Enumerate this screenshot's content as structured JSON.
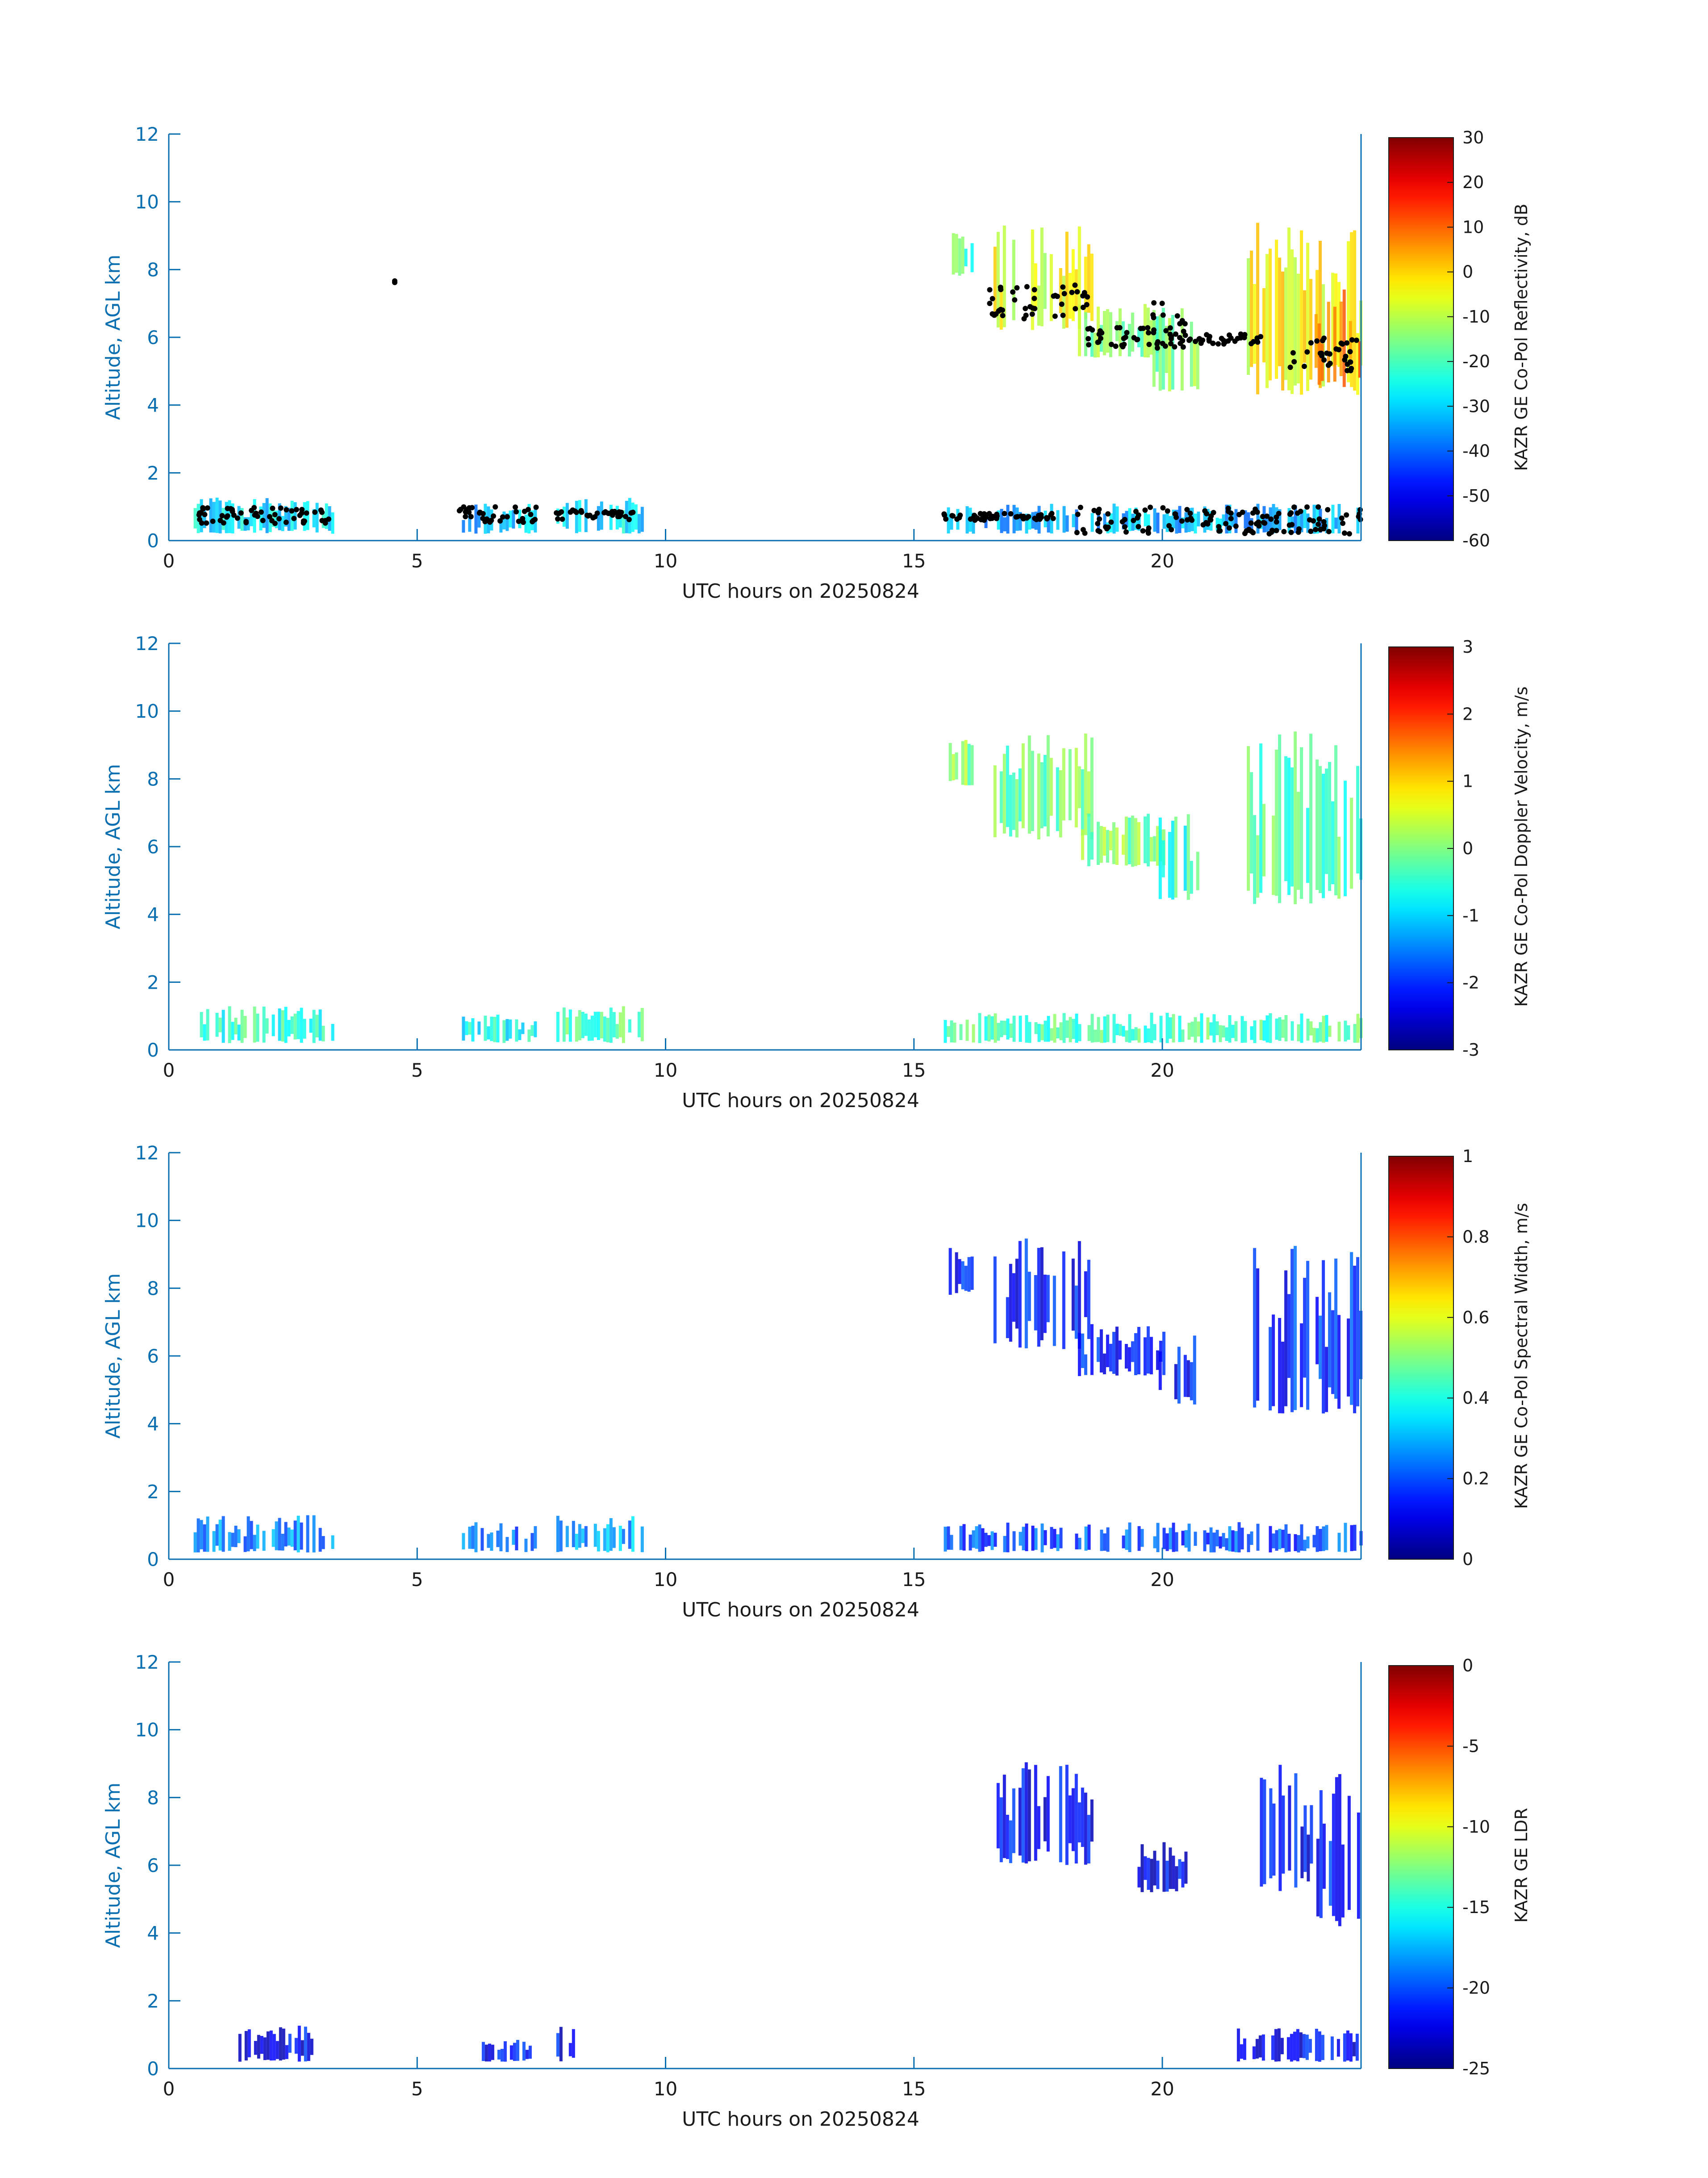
{
  "colors": {
    "axis": "#0a6fb0",
    "text": "#1a1a1a",
    "ceilometer_points": "#000000",
    "colormap": "jet"
  },
  "chart_data": [
    {
      "type": "heatmap",
      "xlabel": "UTC hours on 20250824",
      "ylabel": "Altitude, AGL km",
      "xlim": [
        0,
        24
      ],
      "ylim": [
        0,
        12
      ],
      "xticks": [
        "0",
        "5",
        "10",
        "15",
        "20"
      ],
      "yticks": [
        "0",
        "2",
        "4",
        "6",
        "8",
        "10",
        "12"
      ],
      "colorbar_label": "KAZR GE Co-Pol Reflectivity, dB",
      "colorbar_ticks": [
        "-60",
        "-50",
        "-40",
        "-30",
        "-20",
        "-10",
        "0",
        "10",
        "20",
        "30"
      ],
      "clim": [
        -60,
        30
      ],
      "regions": [
        {
          "x": [
            0.5,
            3.3
          ],
          "y": [
            0.2,
            1.3
          ],
          "level": 0.35
        },
        {
          "x": [
            5.9,
            7.4
          ],
          "y": [
            0.2,
            1.1
          ],
          "level": 0.3
        },
        {
          "x": [
            7.8,
            9.5
          ],
          "y": [
            0.2,
            1.3
          ],
          "level": 0.35
        },
        {
          "x": [
            15.7,
            16.2
          ],
          "y": [
            7.8,
            9.2
          ],
          "level": 0.45
        },
        {
          "x": [
            16.6,
            18.6
          ],
          "y": [
            6.2,
            9.5
          ],
          "level": 0.6
        },
        {
          "x": [
            18.3,
            20.0
          ],
          "y": [
            5.4,
            7.0
          ],
          "level": 0.5
        },
        {
          "x": [
            19.8,
            20.7
          ],
          "y": [
            4.4,
            7.0
          ],
          "level": 0.5
        },
        {
          "x": [
            21.7,
            24.0
          ],
          "y": [
            4.3,
            9.4
          ],
          "level": 0.62
        },
        {
          "x": [
            23.0,
            24.0
          ],
          "y": [
            4.5,
            7.5
          ],
          "level": 0.78
        },
        {
          "x": [
            15.6,
            24.0
          ],
          "y": [
            0.2,
            1.1
          ],
          "level": 0.3
        }
      ],
      "cloud_base_points": [
        {
          "x": [
            0.6,
            3.3
          ],
          "y": [
            0.5,
            1.0
          ]
        },
        {
          "x": [
            4.5,
            4.6
          ],
          "y": [
            7.6,
            7.7
          ]
        },
        {
          "x": [
            5.8,
            7.4
          ],
          "y": [
            0.5,
            1.0
          ]
        },
        {
          "x": [
            7.8,
            9.5
          ],
          "y": [
            0.6,
            0.9
          ]
        },
        {
          "x": [
            15.6,
            18.0
          ],
          "y": [
            0.6,
            0.8
          ]
        },
        {
          "x": [
            16.5,
            18.5
          ],
          "y": [
            6.5,
            7.6
          ]
        },
        {
          "x": [
            18.5,
            20.5
          ],
          "y": [
            5.7,
            6.3
          ]
        },
        {
          "x": [
            19.8,
            20.5
          ],
          "y": [
            5.5,
            7.1
          ]
        },
        {
          "x": [
            20.5,
            22.0
          ],
          "y": [
            5.8,
            6.1
          ]
        },
        {
          "x": [
            22.5,
            24.0
          ],
          "y": [
            5.0,
            6.0
          ]
        },
        {
          "x": [
            18.2,
            24.0
          ],
          "y": [
            0.2,
            1.0
          ]
        }
      ]
    },
    {
      "type": "heatmap",
      "xlabel": "UTC hours on 20250824",
      "ylabel": "Altitude, AGL km",
      "xlim": [
        0,
        24
      ],
      "ylim": [
        0,
        12
      ],
      "xticks": [
        "0",
        "5",
        "10",
        "15",
        "20"
      ],
      "yticks": [
        "0",
        "2",
        "4",
        "6",
        "8",
        "10",
        "12"
      ],
      "colorbar_label": "KAZR GE Co-Pol Doppler Velocity, m/s",
      "colorbar_ticks": [
        "-3",
        "-2",
        "-1",
        "0",
        "1",
        "2",
        "3"
      ],
      "clim": [
        -3,
        3
      ],
      "regions": [
        {
          "x": [
            0.5,
            3.3
          ],
          "y": [
            0.2,
            1.3
          ],
          "level": 0.42
        },
        {
          "x": [
            5.9,
            7.4
          ],
          "y": [
            0.2,
            1.1
          ],
          "level": 0.38
        },
        {
          "x": [
            7.8,
            9.5
          ],
          "y": [
            0.2,
            1.3
          ],
          "level": 0.45
        },
        {
          "x": [
            15.7,
            16.2
          ],
          "y": [
            7.8,
            9.2
          ],
          "level": 0.5
        },
        {
          "x": [
            16.6,
            18.6
          ],
          "y": [
            6.2,
            9.5
          ],
          "level": 0.48
        },
        {
          "x": [
            18.3,
            20.0
          ],
          "y": [
            5.4,
            7.0
          ],
          "level": 0.5
        },
        {
          "x": [
            19.8,
            20.7
          ],
          "y": [
            4.4,
            7.0
          ],
          "level": 0.42
        },
        {
          "x": [
            21.7,
            24.0
          ],
          "y": [
            4.3,
            9.4
          ],
          "level": 0.45
        },
        {
          "x": [
            15.6,
            24.0
          ],
          "y": [
            0.2,
            1.1
          ],
          "level": 0.45
        }
      ]
    },
    {
      "type": "heatmap",
      "xlabel": "UTC hours on 20250824",
      "ylabel": "Altitude, AGL km",
      "xlim": [
        0,
        24
      ],
      "ylim": [
        0,
        12
      ],
      "xticks": [
        "0",
        "5",
        "10",
        "15",
        "20"
      ],
      "yticks": [
        "0",
        "2",
        "4",
        "6",
        "8",
        "10",
        "12"
      ],
      "colorbar_label": "KAZR GE Co-Pol Spectral Width, m/s",
      "colorbar_ticks": [
        "0",
        "0.2",
        "0.4",
        "0.6",
        "0.8",
        "1"
      ],
      "clim": [
        0,
        1
      ],
      "regions": [
        {
          "x": [
            0.5,
            3.3
          ],
          "y": [
            0.2,
            1.3
          ],
          "level": 0.25
        },
        {
          "x": [
            5.9,
            7.4
          ],
          "y": [
            0.2,
            1.1
          ],
          "level": 0.22
        },
        {
          "x": [
            7.8,
            9.5
          ],
          "y": [
            0.2,
            1.3
          ],
          "level": 0.28
        },
        {
          "x": [
            15.7,
            16.2
          ],
          "y": [
            7.8,
            9.2
          ],
          "level": 0.15
        },
        {
          "x": [
            16.6,
            18.6
          ],
          "y": [
            6.2,
            9.5
          ],
          "level": 0.14
        },
        {
          "x": [
            18.3,
            20.0
          ],
          "y": [
            5.4,
            7.0
          ],
          "level": 0.14
        },
        {
          "x": [
            19.8,
            20.7
          ],
          "y": [
            4.4,
            7.0
          ],
          "level": 0.14
        },
        {
          "x": [
            21.7,
            24.0
          ],
          "y": [
            4.3,
            9.4
          ],
          "level": 0.16
        },
        {
          "x": [
            15.6,
            24.0
          ],
          "y": [
            0.2,
            1.1
          ],
          "level": 0.2
        }
      ]
    },
    {
      "type": "heatmap",
      "xlabel": "UTC hours on 20250824",
      "ylabel": "Altitude, AGL km",
      "xlim": [
        0,
        24
      ],
      "ylim": [
        0,
        12
      ],
      "xticks": [
        "0",
        "5",
        "10",
        "15",
        "20"
      ],
      "yticks": [
        "0",
        "2",
        "4",
        "6",
        "8",
        "10",
        "12"
      ],
      "colorbar_label": "KAZR GE LDR",
      "colorbar_ticks": [
        "-25",
        "-20",
        "-15",
        "-10",
        "-5",
        "0"
      ],
      "clim": [
        -25,
        0
      ],
      "regions": [
        {
          "x": [
            1.4,
            2.9
          ],
          "y": [
            0.2,
            1.3
          ],
          "level": 0.12
        },
        {
          "x": [
            6.3,
            7.3
          ],
          "y": [
            0.2,
            0.9
          ],
          "level": 0.12
        },
        {
          "x": [
            7.8,
            8.2
          ],
          "y": [
            0.2,
            1.3
          ],
          "level": 0.12
        },
        {
          "x": [
            16.6,
            18.6
          ],
          "y": [
            6.0,
            9.1
          ],
          "level": 0.12
        },
        {
          "x": [
            19.5,
            20.5
          ],
          "y": [
            5.2,
            6.7
          ],
          "level": 0.12
        },
        {
          "x": [
            21.9,
            23.0
          ],
          "y": [
            5.2,
            9.1
          ],
          "level": 0.12
        },
        {
          "x": [
            23.1,
            24.0
          ],
          "y": [
            4.2,
            8.8
          ],
          "level": 0.14
        },
        {
          "x": [
            21.5,
            24.0
          ],
          "y": [
            0.2,
            1.2
          ],
          "level": 0.12
        }
      ]
    }
  ]
}
